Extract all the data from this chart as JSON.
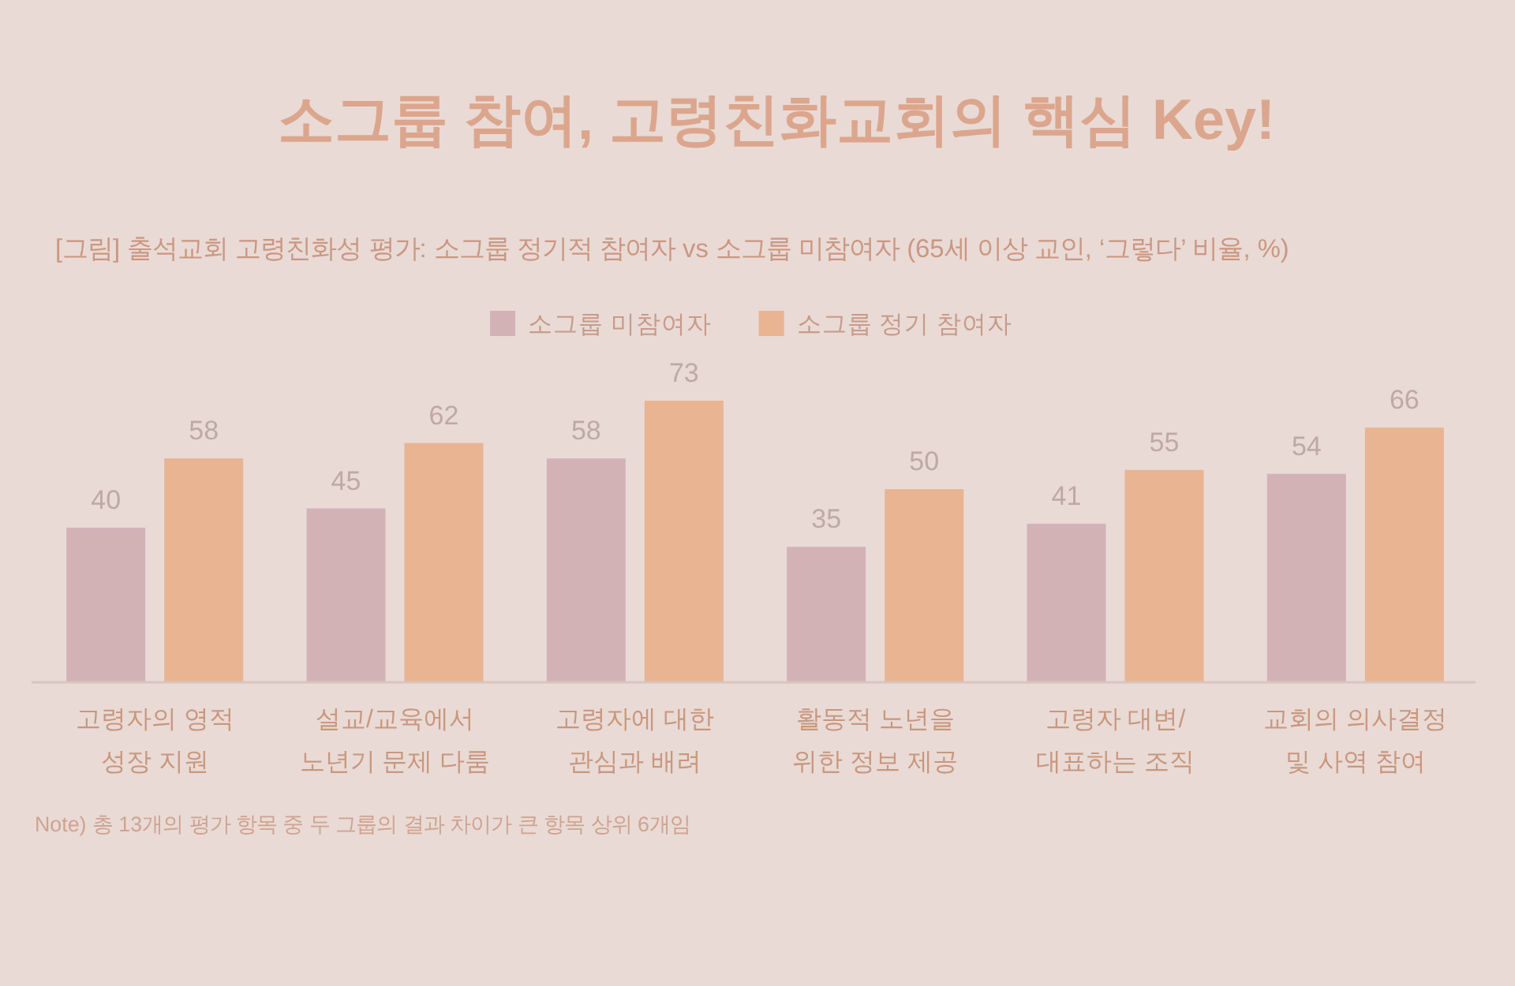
{
  "chart_data": {
    "type": "bar",
    "title": "소그룹 참여, 고령친화교회의 핵심 Key!",
    "subtitle": "[그림] 출석교회 고령친화성 평가: 소그룹 정기적 참여자 vs 소그룹 미참여자 (65세 이상 교인, ‘그렇다’ 비율, %)",
    "categories": [
      "고령자의 영적\n성장 지원",
      "설교/교육에서\n노년기 문제 다룸",
      "고령자에 대한\n관심과 배려",
      "활동적 노년을\n위한 정보 제공",
      "고령자 대변/\n대표하는 조직",
      "교회의 의사결정\n및 사역 참여"
    ],
    "series": [
      {
        "name": "소그룹 미참여자",
        "color": "#d3b2b6",
        "values": [
          40,
          45,
          58,
          35,
          41,
          54
        ]
      },
      {
        "name": "소그룹 정기 참여자",
        "color": "#e8b492",
        "values": [
          58,
          62,
          73,
          50,
          55,
          66
        ]
      }
    ],
    "data_labels": true,
    "legend": "top",
    "annotations": [
      "Note) 총 13개의 평가 항목 중 두 그룹의 결과 차이가 큰 항목 상위 6개임"
    ]
  }
}
